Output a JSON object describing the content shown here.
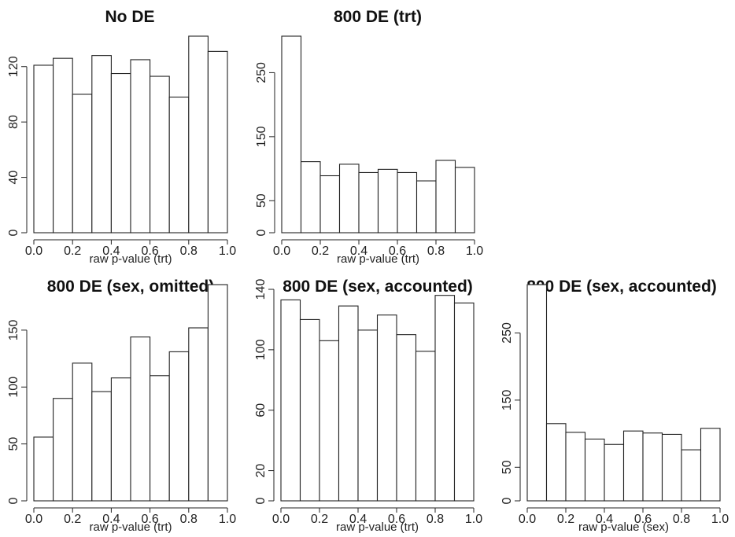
{
  "chart_data": [
    {
      "type": "bar",
      "title": "No DE",
      "xlabel": "raw p-value (trt)",
      "ylabel": "",
      "x_bin_edges": [
        0,
        0.1,
        0.2,
        0.3,
        0.4,
        0.5,
        0.6,
        0.7,
        0.8,
        0.9,
        1.0
      ],
      "values": [
        121,
        126,
        100,
        128,
        115,
        125,
        113,
        98,
        142,
        131
      ],
      "xlim": [
        0,
        1
      ],
      "ylim": [
        0,
        142
      ],
      "xticks": [
        "0.0",
        "0.2",
        "0.4",
        "0.6",
        "0.8",
        "1.0"
      ],
      "yticks": [
        "0",
        "40",
        "80",
        "120"
      ]
    },
    {
      "type": "bar",
      "title": "800 DE (trt)",
      "xlabel": "raw p-value (trt)",
      "ylabel": "",
      "x_bin_edges": [
        0,
        0.1,
        0.2,
        0.3,
        0.4,
        0.5,
        0.6,
        0.7,
        0.8,
        0.9,
        1.0
      ],
      "values": [
        307,
        111,
        89,
        107,
        94,
        99,
        94,
        81,
        113,
        102
      ],
      "xlim": [
        0,
        1
      ],
      "ylim": [
        0,
        307
      ],
      "xticks": [
        "0.0",
        "0.2",
        "0.4",
        "0.6",
        "0.8",
        "1.0"
      ],
      "yticks": [
        "0",
        "50",
        "150",
        "250"
      ]
    },
    {
      "type": "bar",
      "title": "800 DE (sex, omitted)",
      "xlabel": "raw p-value (trt)",
      "ylabel": "",
      "x_bin_edges": [
        0,
        0.1,
        0.2,
        0.3,
        0.4,
        0.5,
        0.6,
        0.7,
        0.8,
        0.9,
        1.0
      ],
      "values": [
        56,
        90,
        121,
        96,
        108,
        144,
        110,
        131,
        152,
        190
      ],
      "xlim": [
        0,
        1
      ],
      "ylim": [
        0,
        190
      ],
      "xticks": [
        "0.0",
        "0.2",
        "0.4",
        "0.6",
        "0.8",
        "1.0"
      ],
      "yticks": [
        "0",
        "50",
        "100",
        "150"
      ]
    },
    {
      "type": "bar",
      "title": "800 DE (sex, accounted)",
      "xlabel": "raw p-value (trt)",
      "ylabel": "",
      "x_bin_edges": [
        0,
        0.1,
        0.2,
        0.3,
        0.4,
        0.5,
        0.6,
        0.7,
        0.8,
        0.9,
        1.0
      ],
      "values": [
        133,
        120,
        106,
        129,
        113,
        123,
        110,
        99,
        136,
        131
      ],
      "xlim": [
        0,
        1
      ],
      "ylim": [
        0,
        140
      ],
      "xticks": [
        "0.0",
        "0.2",
        "0.4",
        "0.6",
        "0.8",
        "1.0"
      ],
      "yticks": [
        "0",
        "20",
        "60",
        "100",
        "140"
      ]
    },
    {
      "type": "bar",
      "title": "800 DE (sex, accounted)",
      "xlabel": "raw p-value (sex)",
      "ylabel": "",
      "x_bin_edges": [
        0,
        0.1,
        0.2,
        0.3,
        0.4,
        0.5,
        0.6,
        0.7,
        0.8,
        0.9,
        1.0
      ],
      "values": [
        322,
        115,
        102,
        92,
        84,
        104,
        101,
        99,
        76,
        108
      ],
      "xlim": [
        0,
        1
      ],
      "ylim": [
        0,
        322
      ],
      "xticks": [
        "0.0",
        "0.2",
        "0.4",
        "0.6",
        "0.8",
        "1.0"
      ],
      "yticks": [
        "0",
        "50",
        "150",
        "250"
      ]
    }
  ]
}
